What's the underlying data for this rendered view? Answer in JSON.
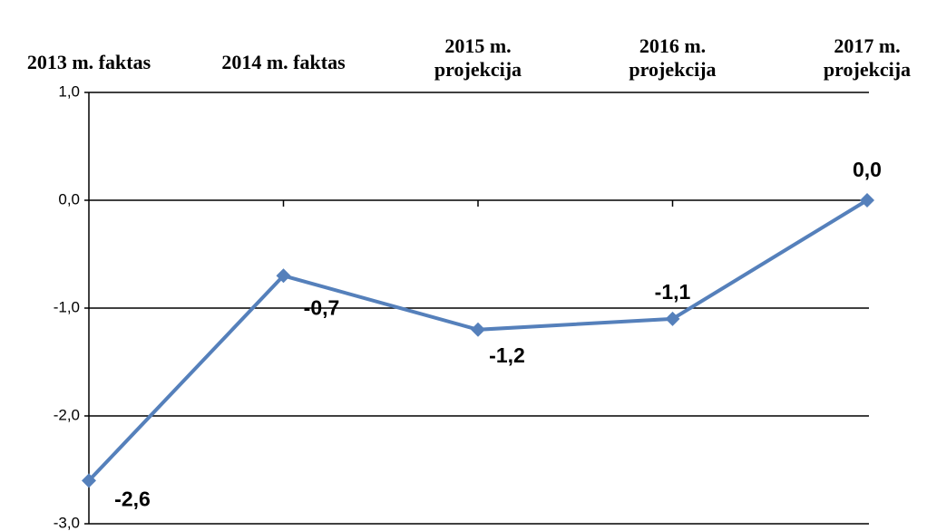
{
  "chart_data": {
    "type": "line",
    "categories": [
      "2013 m. faktas",
      "2014 m. faktas",
      "2015 m.\nprojekcija",
      "2016 m.\nprojekcija",
      "2017 m.\nprojekcija"
    ],
    "values": [
      -2.6,
      -0.7,
      -1.2,
      -1.1,
      0.0
    ],
    "value_labels": [
      "-2,6",
      "-0,7",
      "-1,2",
      "-1,1",
      "0,0"
    ],
    "color": "#5580bb",
    "ylim": [
      -3,
      1
    ],
    "yticks": [
      {
        "value": 1,
        "label": "1,0"
      },
      {
        "value": 0,
        "label": "0,0"
      },
      {
        "value": -1,
        "label": "-1,0"
      },
      {
        "value": -2,
        "label": "-2,0"
      },
      {
        "value": -3,
        "label": "-3,0"
      }
    ],
    "grid": true
  }
}
